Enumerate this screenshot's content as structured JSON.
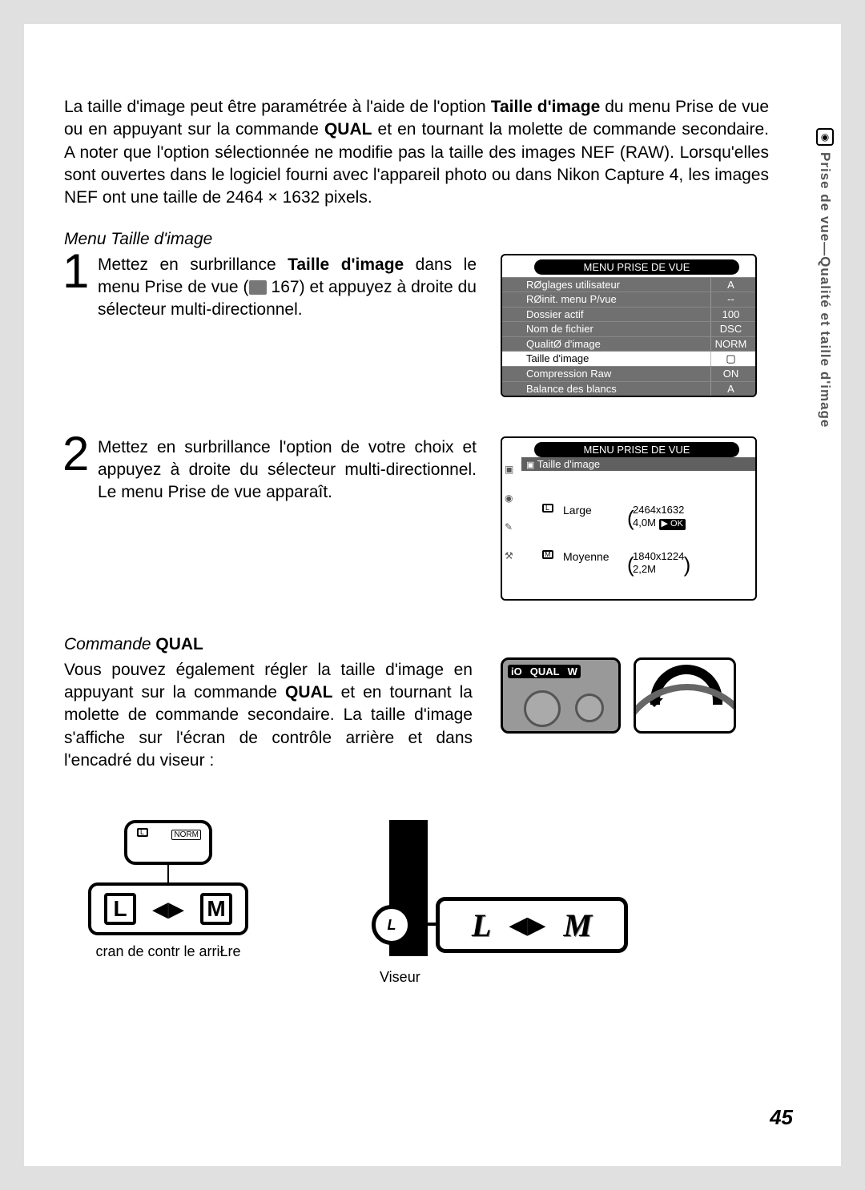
{
  "sideTab": "Prise de vue—Qualité et taille d'image",
  "pageNumber": "45",
  "intro": {
    "p1_a": "La taille d'image peut être paramétrée à l'aide de l'option ",
    "p1_bold1": "Taille d'image",
    "p1_b": " du menu Prise de vue ou en appuyant sur la commande ",
    "p1_bold2": "QUAL",
    "p1_c": " et en tournant la molette de commande secondaire. A noter que l'option sélectionnée ne modifie pas la taille des images NEF (RAW). Lorsqu'elles sont ouvertes dans le logiciel fourni avec l'appareil photo ou dans Nikon Capture 4, les images NEF ont une taille de 2464 × 1632 pixels."
  },
  "menuHead": "Menu Taille d'image",
  "step1": {
    "num": "1",
    "t1": "Mettez en surbrillance ",
    "bold": "Taille d'image",
    "t2": " dans le menu Prise de vue (",
    "ref": "167",
    "t3": ") et appuyez à droite du sélecteur multi-directionnel."
  },
  "step2": {
    "num": "2",
    "text": "Mettez en surbrillance l'option de votre choix et appuyez à droite du sélecteur multi-directionnel. Le menu Prise de vue apparaît."
  },
  "lcd1": {
    "title": "MENU PRISE DE VUE",
    "rows": [
      {
        "label": "RØglages utilisateur",
        "val": "A"
      },
      {
        "label": "RØinit. menu P/vue",
        "val": "--"
      },
      {
        "label": "Dossier actif",
        "val": "100"
      },
      {
        "label": "Nom de fichier",
        "val": "DSC"
      },
      {
        "label": "QualitØ d'image",
        "val": "NORM"
      },
      {
        "label": "Taille d'image",
        "val": "▢",
        "white": true
      },
      {
        "label": "Compression Raw",
        "val": "ON"
      },
      {
        "label": "Balance des blancs",
        "val": "A"
      }
    ]
  },
  "lcd2": {
    "title": "MENU PRISE DE VUE",
    "sub": "Taille d'image",
    "opt1": {
      "name": "Large",
      "res": "2464x1632",
      "mp": "4,0M",
      "ok": "▶ OK"
    },
    "opt2": {
      "name": "Moyenne",
      "res": "1840x1224",
      "mp": "2,2M"
    }
  },
  "qual": {
    "head_a": "Commande ",
    "head_b": "QUAL",
    "text_a": "Vous pouvez également régler la taille d'image en appuyant sur la commande ",
    "bold": "QUAL",
    "text_b": " et en tournant la molette de commande secondaire. La taille d'image s'affiche sur l'écran de contrôle arrière et dans l'encadré du viseur :"
  },
  "camLabels": {
    "iso": "iO",
    "qual": "QUAL",
    "w": "W"
  },
  "bottom": {
    "rearTopInner": "NORM",
    "rearL": "L",
    "rearM": "M",
    "rearCaption": "cran de contr le arriŁre",
    "viseurL": "L",
    "viseurM": "M",
    "viseurCircle": "L",
    "viseurCaption": "Viseur"
  }
}
